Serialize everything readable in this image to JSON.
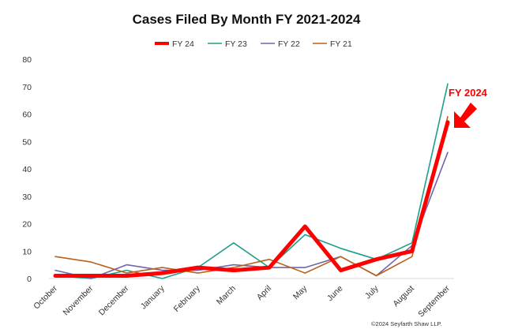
{
  "chart_data": {
    "type": "line",
    "title": "Cases Filed By Month FY 2021-2024",
    "xlabel": "",
    "ylabel": "",
    "ylim": [
      0,
      80
    ],
    "yticks": [
      0,
      10,
      20,
      30,
      40,
      50,
      60,
      70,
      80
    ],
    "grid": false,
    "legend_position": "top",
    "categories": [
      "October",
      "November",
      "December",
      "January",
      "February",
      "March",
      "April",
      "May",
      "June",
      "July",
      "August",
      "September"
    ],
    "series": [
      {
        "name": "FY 24",
        "color": "#ff0000",
        "emphasis": true,
        "values": [
          1,
          1,
          1,
          2,
          4,
          3,
          4,
          19,
          3,
          7,
          10,
          57
        ]
      },
      {
        "name": "FY 23",
        "color": "#1f9e89",
        "values": [
          1,
          0,
          3,
          0,
          4,
          13,
          4,
          16,
          11,
          7,
          13,
          71
        ]
      },
      {
        "name": "FY 22",
        "color": "#6f66ad",
        "values": [
          3,
          0,
          5,
          3,
          3,
          5,
          4,
          4,
          8,
          1,
          12,
          46
        ]
      },
      {
        "name": "FY 21",
        "color": "#b8621b",
        "values": [
          8,
          6,
          2,
          4,
          2,
          4,
          7,
          2,
          8,
          1,
          8,
          59
        ]
      }
    ],
    "annotation": {
      "text": "FY 2024",
      "color": "#ff0000",
      "arrow_icon": "arrow-down-left-icon",
      "points_to_series": "FY 24",
      "points_to_category": "September"
    }
  },
  "footer": {
    "credit": "©2024 Seyfarth Shaw LLP."
  }
}
